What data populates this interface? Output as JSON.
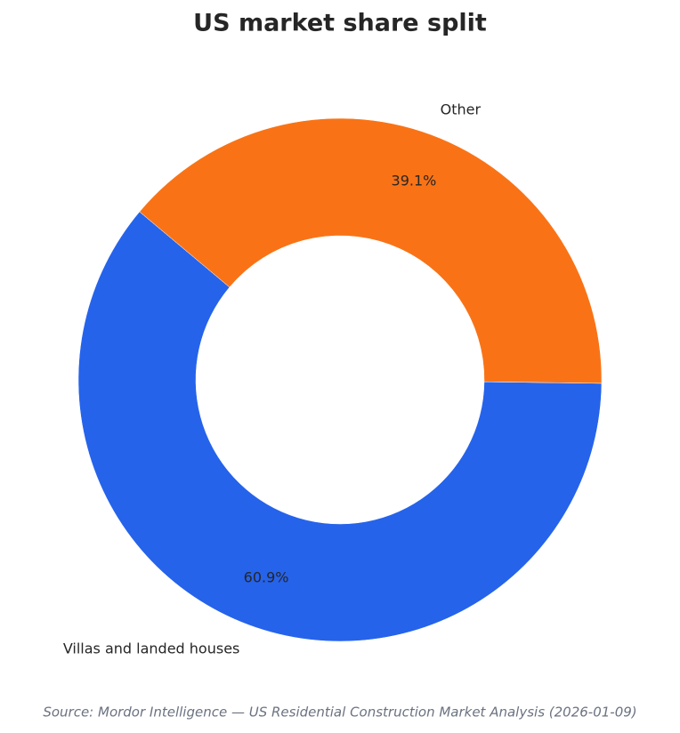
{
  "chart_data": {
    "type": "pie",
    "title": "US market share split",
    "categories": [
      "Villas and landed houses",
      "Other"
    ],
    "values": [
      60.9,
      39.1
    ],
    "value_labels": [
      "60.9%",
      "39.1%"
    ],
    "colors": [
      "#2563eb",
      "#f97316"
    ],
    "source": "Source: Mordor Intelligence — US Residential Construction Market Analysis (2026-01-09)"
  }
}
